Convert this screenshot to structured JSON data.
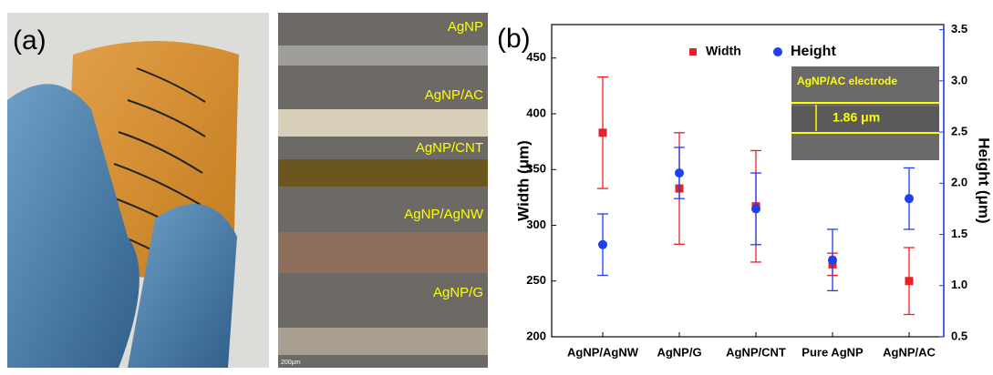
{
  "panel_a": {
    "label": "(a)",
    "layers": [
      "AgNP",
      "AgNP/AC",
      "AgNP/CNT",
      "AgNP/AgNW",
      "AgNP/G"
    ],
    "scale_bar": "200μm"
  },
  "chart_data": {
    "type": "scatter",
    "panel_label": "(b)",
    "categories": [
      "AgNP/AgNW",
      "AgNP/G",
      "AgNP/CNT",
      "Pure AgNP",
      "AgNP/AC"
    ],
    "y_label": "Width (μm)",
    "y2_label": "Height (μm)",
    "ylim": [
      200,
      480
    ],
    "yticks": [
      200,
      250,
      300,
      350,
      400,
      450
    ],
    "y2lim": [
      0.5,
      3.55
    ],
    "y2ticks": [
      0.5,
      {
        "value": 1,
        "label": "1.0"
      },
      1.5,
      {
        "value": 2,
        "label": "2.0"
      },
      2.5,
      {
        "value": 3,
        "label": "3.0"
      },
      3.5
    ],
    "legend": "top",
    "series": [
      {
        "name": "Width",
        "color": "#e8202a",
        "marker": "square",
        "values": [
          383,
          333,
          317,
          265,
          250
        ],
        "errors": [
          50,
          50,
          50,
          10,
          30
        ]
      },
      {
        "name": "Height",
        "color": "#1f3ff0",
        "marker": "circle",
        "axis": "y2",
        "values": [
          1.4,
          2.1,
          1.75,
          1.25,
          1.85
        ],
        "errors": [
          0.3,
          0.25,
          0.35,
          0.3,
          0.3
        ]
      }
    ],
    "inset": {
      "title": "AgNP/AC electrode",
      "annotation": "1.86 μm"
    }
  }
}
